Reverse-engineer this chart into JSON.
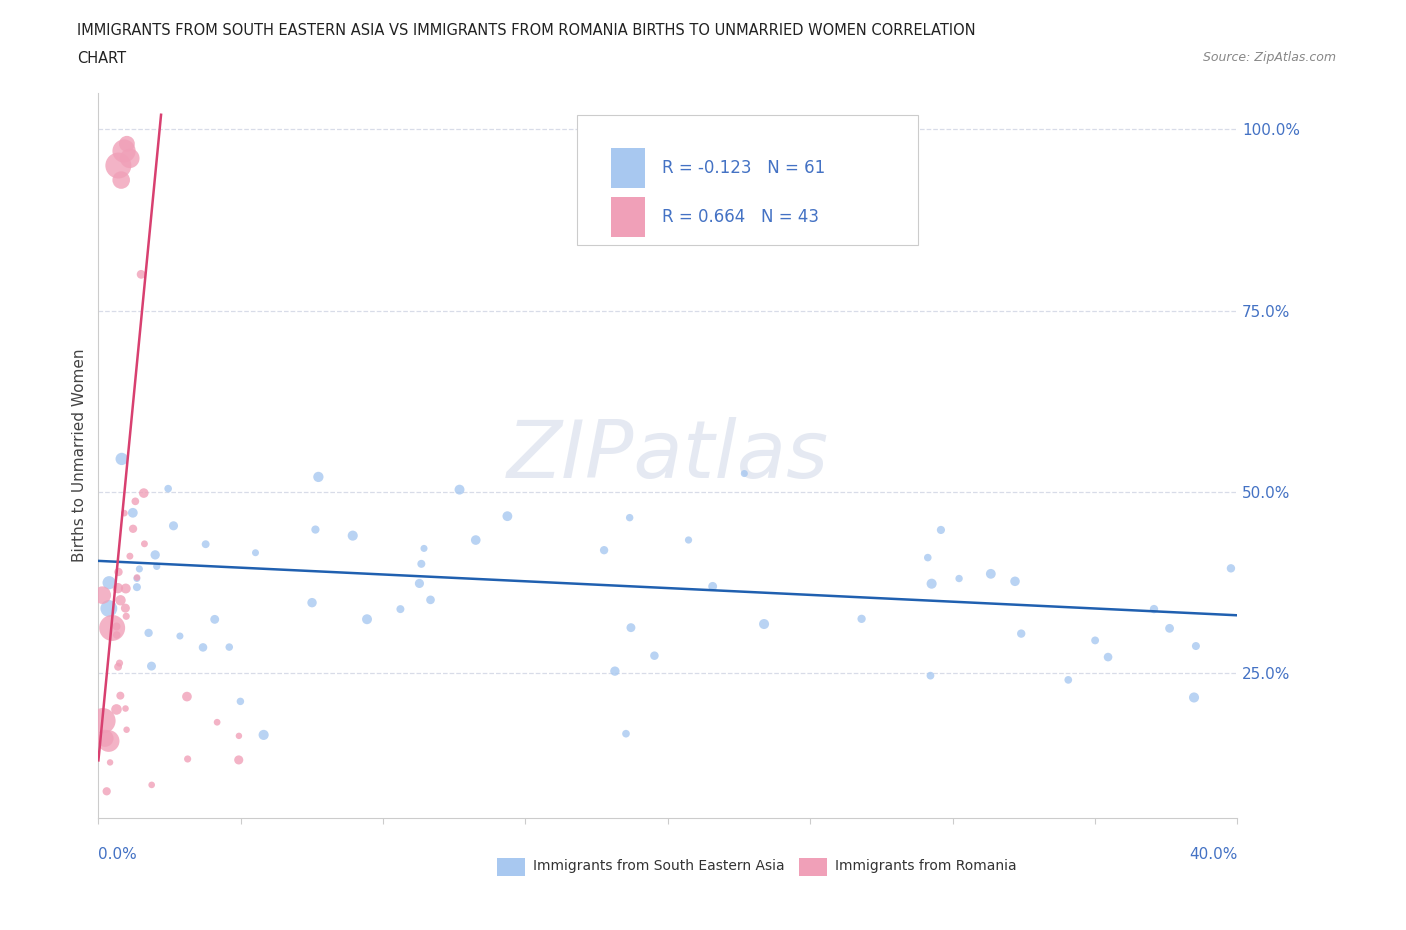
{
  "title_line1": "IMMIGRANTS FROM SOUTH EASTERN ASIA VS IMMIGRANTS FROM ROMANIA BIRTHS TO UNMARRIED WOMEN CORRELATION",
  "title_line2": "CHART",
  "source": "Source: ZipAtlas.com",
  "ylabel": "Births to Unmarried Women",
  "color_blue": "#a8c8f0",
  "color_pink": "#f0a0b8",
  "color_line_blue": "#2060b0",
  "color_line_pink": "#d84070",
  "watermark": "ZIPatlas",
  "watermark_color": "#d0d8e8",
  "legend_r1": "R = -0.123",
  "legend_n1": "N = 61",
  "legend_r2": "R = 0.664",
  "legend_n2": "N = 43",
  "text_color_blue": "#4472c4",
  "text_color_black": "#333333",
  "ytick_vals": [
    0.25,
    0.5,
    0.75,
    1.0
  ],
  "ytick_labels": [
    "25.0%",
    "50.0%",
    "75.0%",
    "100.0%"
  ],
  "xlim": [
    0.0,
    0.4
  ],
  "ylim": [
    0.05,
    1.05
  ],
  "blue_trend_x0": 0.0,
  "blue_trend_y0": 0.405,
  "blue_trend_x1": 0.4,
  "blue_trend_y1": 0.33,
  "pink_trend_x0": 0.0,
  "pink_trend_y0": 0.13,
  "pink_trend_x1": 0.022,
  "pink_trend_y1": 1.02
}
